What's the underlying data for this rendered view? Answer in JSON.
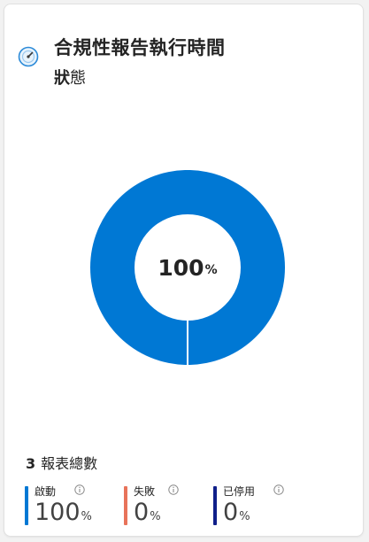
{
  "card": {
    "title": "合規性報告執行時間",
    "subtitle_bold": "狀",
    "subtitle_rest": "態",
    "header_icon": "gauge-icon"
  },
  "donut": {
    "center_value": "100",
    "center_unit": "%",
    "active_fraction": 1.0,
    "color_active": "#0078d4",
    "color_failed": "#e8735a",
    "color_disabled": "#0f1f8a"
  },
  "summary": {
    "total_count": "3",
    "total_label": "報表總數"
  },
  "legend": [
    {
      "label": "啟動",
      "value": "100",
      "unit": "%",
      "color": "#0078d4",
      "info_icon": "info-icon"
    },
    {
      "label": "失敗",
      "value": "0",
      "unit": "%",
      "color": "#e8735a",
      "info_icon": "info-icon"
    },
    {
      "label": "已停用",
      "value": "0",
      "unit": "%",
      "color": "#0f1f8a",
      "info_icon": "info-icon"
    }
  ]
}
